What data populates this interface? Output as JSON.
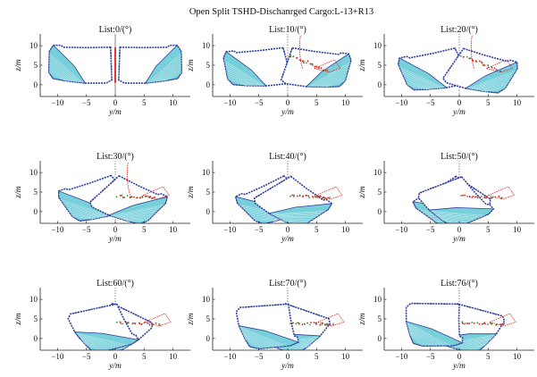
{
  "figure": {
    "title": "Open Split TSHD-Dischanrged Cargo:L-13+R13"
  },
  "colors": {
    "hull": "#2f3f9a",
    "hull_fill": "#5fc7d4",
    "hull_fill_light": "#bfe9ee",
    "cargo_red": "#e02020",
    "cargo_green": "#2d9a3a",
    "axis": "#222222",
    "centerline": "#555555"
  },
  "chart_data": [
    {
      "type": "scatter",
      "title": "List:0/(°)",
      "list_deg": 0,
      "xlabel": "y/m",
      "ylabel": "z/m",
      "xlim": [
        -13,
        13
      ],
      "ylim": [
        -3,
        13
      ],
      "xticks": [
        -10,
        -5,
        0,
        5,
        10
      ],
      "yticks": [
        0,
        5,
        10
      ],
      "grid": false
    },
    {
      "type": "scatter",
      "title": "List:10/(°)",
      "list_deg": 10,
      "xlabel": "y/m",
      "ylabel": "z/m",
      "xlim": [
        -13,
        13
      ],
      "ylim": [
        -3,
        13
      ],
      "xticks": [
        -10,
        -5,
        0,
        5,
        10
      ],
      "yticks": [
        0,
        5,
        10
      ],
      "grid": false
    },
    {
      "type": "scatter",
      "title": "List:20/(°)",
      "list_deg": 20,
      "xlabel": "y/m",
      "ylabel": "z/m",
      "xlim": [
        -13,
        13
      ],
      "ylim": [
        -3,
        13
      ],
      "xticks": [
        -10,
        -5,
        0,
        5,
        10
      ],
      "yticks": [
        0,
        5,
        10
      ],
      "grid": false
    },
    {
      "type": "scatter",
      "title": "List:30/(°)",
      "list_deg": 30,
      "xlabel": "y/m",
      "ylabel": "z/m",
      "xlim": [
        -13,
        13
      ],
      "ylim": [
        -3,
        13
      ],
      "xticks": [
        -10,
        -5,
        0,
        5,
        10
      ],
      "yticks": [
        0,
        5,
        10
      ],
      "grid": false
    },
    {
      "type": "scatter",
      "title": "List:40/(°)",
      "list_deg": 40,
      "xlabel": "y/m",
      "ylabel": "z/m",
      "xlim": [
        -13,
        13
      ],
      "ylim": [
        -3,
        13
      ],
      "xticks": [
        -10,
        -5,
        0,
        5,
        10
      ],
      "yticks": [
        0,
        5,
        10
      ],
      "grid": false
    },
    {
      "type": "scatter",
      "title": "List:50/(°)",
      "list_deg": 50,
      "xlabel": "y/m",
      "ylabel": "z/m",
      "xlim": [
        -13,
        13
      ],
      "ylim": [
        -3,
        13
      ],
      "xticks": [
        -10,
        -5,
        0,
        5,
        10
      ],
      "yticks": [
        0,
        5,
        10
      ],
      "grid": false
    },
    {
      "type": "scatter",
      "title": "List:60/(°)",
      "list_deg": 60,
      "xlabel": "y/m",
      "ylabel": "z/m",
      "xlim": [
        -13,
        13
      ],
      "ylim": [
        -3,
        13
      ],
      "xticks": [
        -10,
        -5,
        0,
        5,
        10
      ],
      "yticks": [
        0,
        5,
        10
      ],
      "grid": false
    },
    {
      "type": "scatter",
      "title": "List:70/(°)",
      "list_deg": 70,
      "xlabel": "y/m",
      "ylabel": "z/m",
      "xlim": [
        -13,
        13
      ],
      "ylim": [
        -3,
        13
      ],
      "xticks": [
        -10,
        -5,
        0,
        5,
        10
      ],
      "yticks": [
        0,
        5,
        10
      ],
      "grid": false
    },
    {
      "type": "scatter",
      "title": "List:76/(°)",
      "list_deg": 76,
      "xlabel": "y/m",
      "ylabel": "z/m",
      "xlim": [
        -13,
        13
      ],
      "ylim": [
        -3,
        13
      ],
      "xticks": [
        -10,
        -5,
        0,
        5,
        10
      ],
      "yticks": [
        0,
        5,
        10
      ],
      "grid": false
    }
  ]
}
